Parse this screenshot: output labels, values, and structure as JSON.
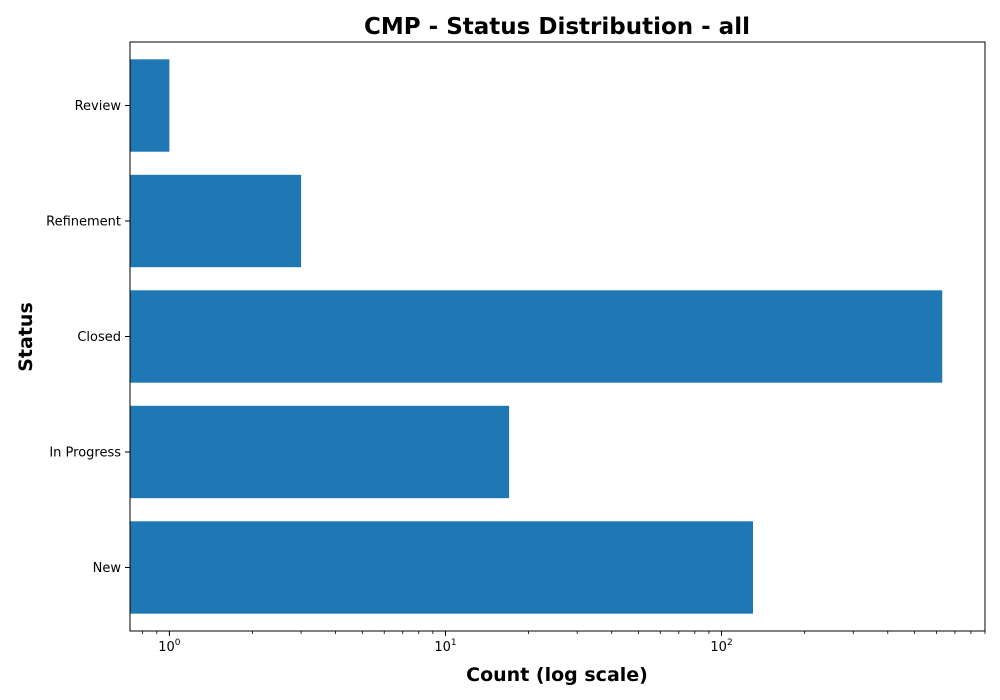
{
  "chart_data": {
    "type": "bar",
    "orientation": "horizontal",
    "title": "CMP - Status Distribution - all",
    "xlabel": "Count (log scale)",
    "ylabel": "Status",
    "x_scale": "log",
    "xlim": [
      0.72,
      900
    ],
    "categories": [
      "New",
      "In Progress",
      "Closed",
      "Refinement",
      "Review"
    ],
    "values": [
      130,
      17,
      630,
      3,
      1
    ],
    "x_ticks": [
      {
        "value": 1,
        "base": "10",
        "exp": "0"
      },
      {
        "value": 10,
        "base": "10",
        "exp": "1"
      },
      {
        "value": 100,
        "base": "10",
        "exp": "2"
      }
    ],
    "grid": false,
    "legend": "none",
    "bar_color": "#1f77b4"
  }
}
